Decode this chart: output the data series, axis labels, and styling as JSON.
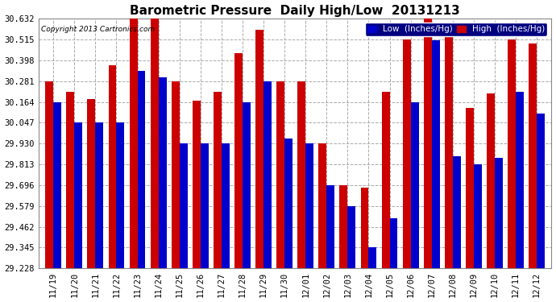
{
  "title": "Barometric Pressure  Daily High/Low  20131213",
  "copyright": "Copyright 2013 Cartronics.com",
  "legend_low": "Low  (Inches/Hg)",
  "legend_high": "High  (Inches/Hg)",
  "low_color": "#0000cc",
  "high_color": "#cc0000",
  "background_color": "#ffffff",
  "grid_color": "#aaaaaa",
  "ylim_min": 29.228,
  "ylim_max": 30.632,
  "yticks": [
    29.228,
    29.345,
    29.462,
    29.579,
    29.696,
    29.813,
    29.93,
    30.047,
    30.164,
    30.281,
    30.398,
    30.515,
    30.632
  ],
  "dates": [
    "11/19",
    "11/20",
    "11/21",
    "11/22",
    "11/23",
    "11/24",
    "11/25",
    "11/26",
    "11/27",
    "11/28",
    "11/29",
    "11/30",
    "12/01",
    "12/02",
    "12/03",
    "12/04",
    "12/05",
    "12/06",
    "12/07",
    "12/08",
    "12/09",
    "12/10",
    "12/11",
    "12/12"
  ],
  "high_values": [
    30.281,
    30.22,
    30.18,
    30.37,
    30.632,
    30.632,
    30.281,
    30.17,
    30.22,
    30.44,
    30.57,
    30.281,
    30.281,
    29.93,
    29.696,
    29.68,
    30.22,
    30.515,
    30.632,
    30.56,
    30.13,
    30.21,
    30.515,
    30.49
  ],
  "low_values": [
    30.164,
    30.047,
    30.047,
    30.047,
    30.34,
    30.3,
    29.93,
    29.93,
    29.93,
    30.164,
    30.281,
    29.96,
    29.93,
    29.696,
    29.579,
    29.345,
    29.51,
    30.164,
    30.51,
    29.86,
    29.813,
    29.85,
    30.22,
    30.1
  ]
}
